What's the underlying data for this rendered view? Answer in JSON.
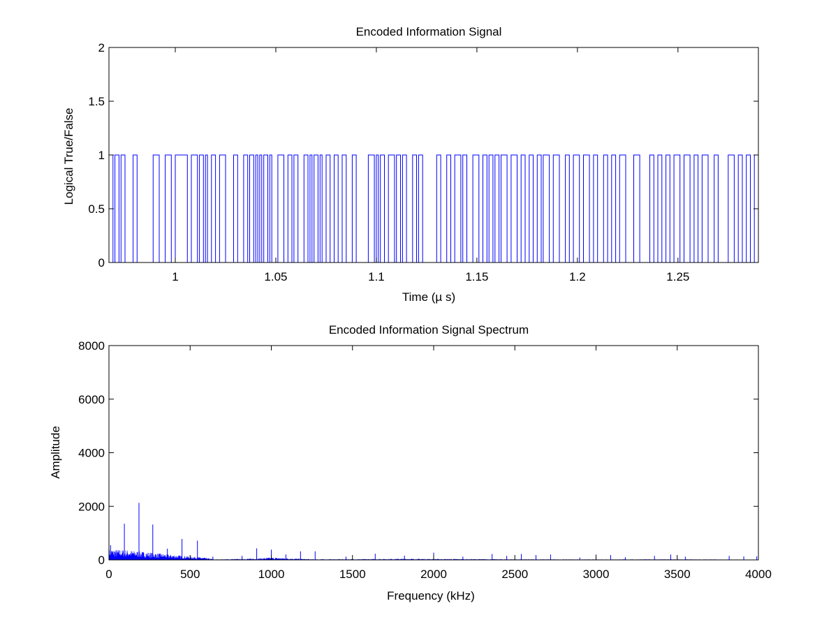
{
  "chart_data": [
    {
      "type": "line",
      "style": "step",
      "title": "Encoded Information Signal",
      "xlabel": "Time (µ s)",
      "ylabel": "Logical True/False",
      "xlim": [
        0.967,
        1.29
      ],
      "ylim": [
        0,
        2
      ],
      "xticks": [
        1,
        1.05,
        1.1,
        1.15,
        1.2,
        1.25
      ],
      "xtick_labels": [
        "1",
        "1.05",
        "1.1",
        "1.15",
        "1.2",
        "1.25"
      ],
      "yticks": [
        0,
        0.5,
        1,
        1.5,
        2
      ],
      "ytick_labels": [
        "0",
        "0.5",
        "1",
        "1.5",
        "2"
      ],
      "grid": false,
      "color": "#0000ff",
      "high_intervals": [
        [
          0.967,
          0.969
        ],
        [
          0.97,
          0.972
        ],
        [
          0.973,
          0.975
        ],
        [
          0.979,
          0.981
        ],
        [
          0.989,
          0.992
        ],
        [
          0.995,
          0.998
        ],
        [
          1.0,
          1.006
        ],
        [
          1.008,
          1.011
        ],
        [
          1.012,
          1.014
        ],
        [
          1.015,
          1.016
        ],
        [
          1.018,
          1.02
        ],
        [
          1.022,
          1.025
        ],
        [
          1.029,
          1.031
        ],
        [
          1.034,
          1.036
        ],
        [
          1.037,
          1.039
        ],
        [
          1.04,
          1.041
        ],
        [
          1.042,
          1.043
        ],
        [
          1.044,
          1.046
        ],
        [
          1.047,
          1.048
        ],
        [
          1.051,
          1.054
        ],
        [
          1.056,
          1.058
        ],
        [
          1.059,
          1.061
        ],
        [
          1.064,
          1.066
        ],
        [
          1.067,
          1.068
        ],
        [
          1.069,
          1.071
        ],
        [
          1.072,
          1.073
        ],
        [
          1.075,
          1.077
        ],
        [
          1.079,
          1.081
        ],
        [
          1.083,
          1.085
        ],
        [
          1.088,
          1.09
        ],
        [
          1.096,
          1.099
        ],
        [
          1.1,
          1.101
        ],
        [
          1.102,
          1.104
        ],
        [
          1.106,
          1.109
        ],
        [
          1.11,
          1.112
        ],
        [
          1.113,
          1.115
        ],
        [
          1.118,
          1.12
        ],
        [
          1.121,
          1.123
        ],
        [
          1.13,
          1.132
        ],
        [
          1.135,
          1.137
        ],
        [
          1.139,
          1.142
        ],
        [
          1.143,
          1.145
        ],
        [
          1.148,
          1.151
        ],
        [
          1.153,
          1.155
        ],
        [
          1.156,
          1.158
        ],
        [
          1.159,
          1.161
        ],
        [
          1.162,
          1.165
        ],
        [
          1.167,
          1.17
        ],
        [
          1.172,
          1.174
        ],
        [
          1.176,
          1.178
        ],
        [
          1.18,
          1.182
        ],
        [
          1.183,
          1.186
        ],
        [
          1.188,
          1.191
        ],
        [
          1.194,
          1.196
        ],
        [
          1.198,
          1.201
        ],
        [
          1.203,
          1.206
        ],
        [
          1.208,
          1.21
        ],
        [
          1.213,
          1.215
        ],
        [
          1.217,
          1.219
        ],
        [
          1.221,
          1.224
        ],
        [
          1.228,
          1.231
        ],
        [
          1.236,
          1.238
        ],
        [
          1.24,
          1.242
        ],
        [
          1.244,
          1.246
        ],
        [
          1.248,
          1.251
        ],
        [
          1.253,
          1.256
        ],
        [
          1.258,
          1.26
        ],
        [
          1.262,
          1.265
        ],
        [
          1.268,
          1.27
        ],
        [
          1.275,
          1.278
        ],
        [
          1.28,
          1.282
        ],
        [
          1.284,
          1.286
        ],
        [
          1.288,
          1.29
        ]
      ]
    },
    {
      "type": "line",
      "style": "stem",
      "title": "Encoded Information Signal Spectrum",
      "xlabel": "Frequency (kHz)",
      "ylabel": "Amplitude",
      "xlim": [
        0,
        4000
      ],
      "ylim": [
        0,
        8000
      ],
      "xticks": [
        0,
        500,
        1000,
        1500,
        2000,
        2500,
        3000,
        3500,
        4000
      ],
      "xtick_labels": [
        "0",
        "500",
        "1000",
        "1500",
        "2000",
        "2500",
        "3000",
        "3500",
        "4000"
      ],
      "yticks": [
        0,
        2000,
        4000,
        6000,
        8000
      ],
      "ytick_labels": [
        "0",
        "2000",
        "4000",
        "6000",
        "8000"
      ],
      "grid": false,
      "color": "#0000ff",
      "peaks": [
        {
          "x": 10,
          "y": 550
        },
        {
          "x": 95,
          "y": 1350
        },
        {
          "x": 185,
          "y": 2130
        },
        {
          "x": 270,
          "y": 1320
        },
        {
          "x": 360,
          "y": 420
        },
        {
          "x": 450,
          "y": 780
        },
        {
          "x": 545,
          "y": 720
        },
        {
          "x": 640,
          "y": 120
        },
        {
          "x": 820,
          "y": 150
        },
        {
          "x": 910,
          "y": 430
        },
        {
          "x": 1000,
          "y": 380
        },
        {
          "x": 1090,
          "y": 200
        },
        {
          "x": 1180,
          "y": 320
        },
        {
          "x": 1270,
          "y": 320
        },
        {
          "x": 1460,
          "y": 120
        },
        {
          "x": 1640,
          "y": 230
        },
        {
          "x": 1820,
          "y": 160
        },
        {
          "x": 2000,
          "y": 270
        },
        {
          "x": 2180,
          "y": 120
        },
        {
          "x": 2360,
          "y": 220
        },
        {
          "x": 2450,
          "y": 150
        },
        {
          "x": 2540,
          "y": 220
        },
        {
          "x": 2630,
          "y": 180
        },
        {
          "x": 2720,
          "y": 200
        },
        {
          "x": 2900,
          "y": 90
        },
        {
          "x": 3000,
          "y": 200
        },
        {
          "x": 3090,
          "y": 180
        },
        {
          "x": 3180,
          "y": 100
        },
        {
          "x": 3360,
          "y": 150
        },
        {
          "x": 3460,
          "y": 200
        },
        {
          "x": 3550,
          "y": 120
        },
        {
          "x": 3820,
          "y": 150
        },
        {
          "x": 3910,
          "y": 130
        },
        {
          "x": 3990,
          "y": 130
        }
      ],
      "noise_floor": [
        {
          "x": 0,
          "y": 320
        },
        {
          "x": 100,
          "y": 300
        },
        {
          "x": 200,
          "y": 250
        },
        {
          "x": 300,
          "y": 200
        },
        {
          "x": 400,
          "y": 150
        },
        {
          "x": 500,
          "y": 110
        },
        {
          "x": 600,
          "y": 60
        },
        {
          "x": 650,
          "y": 15
        },
        {
          "x": 900,
          "y": 40
        },
        {
          "x": 1000,
          "y": 70
        },
        {
          "x": 1100,
          "y": 50
        },
        {
          "x": 1250,
          "y": 20
        },
        {
          "x": 1600,
          "y": 25
        },
        {
          "x": 1800,
          "y": 35
        },
        {
          "x": 2000,
          "y": 30
        },
        {
          "x": 2500,
          "y": 20
        },
        {
          "x": 3000,
          "y": 15
        },
        {
          "x": 3400,
          "y": 20
        },
        {
          "x": 4000,
          "y": 10
        }
      ]
    }
  ]
}
